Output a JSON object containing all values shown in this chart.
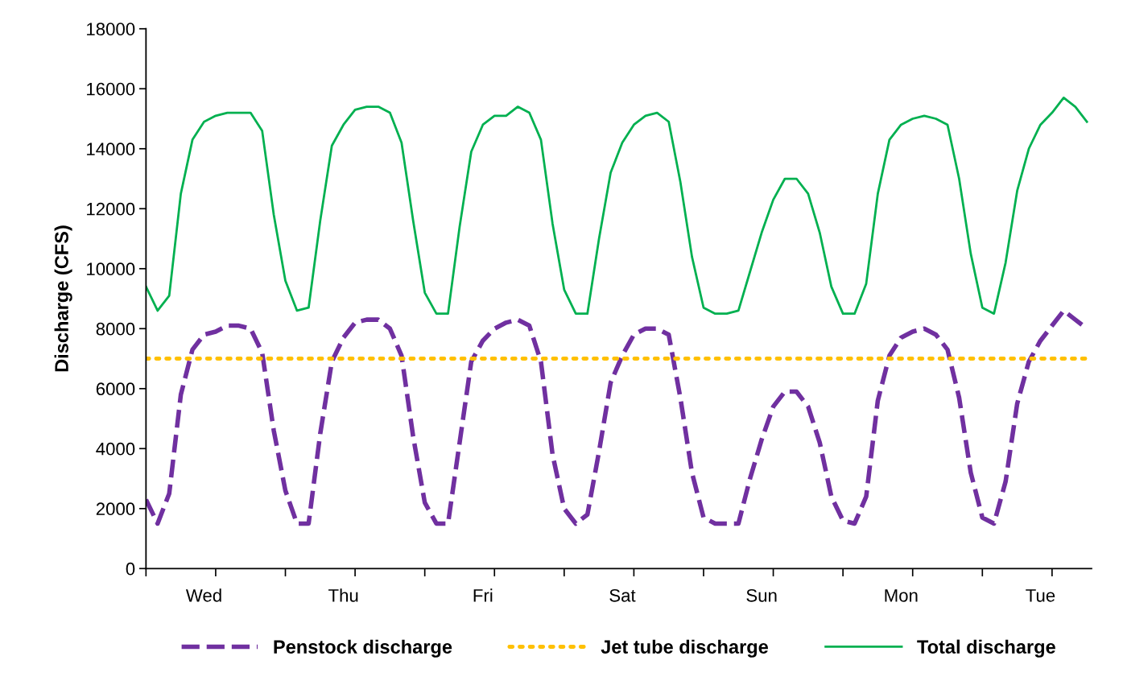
{
  "chart_data": {
    "type": "line",
    "ylabel": "Discharge (CFS)",
    "ylim": [
      0,
      18000
    ],
    "yticks": [
      0,
      2000,
      4000,
      6000,
      8000,
      10000,
      12000,
      14000,
      16000,
      18000
    ],
    "categories": [
      null,
      null,
      null,
      null,
      null,
      "Wed",
      null,
      null,
      null,
      null,
      null,
      null,
      null,
      null,
      null,
      null,
      null,
      "Thu",
      null,
      null,
      null,
      null,
      null,
      null,
      null,
      null,
      null,
      null,
      null,
      "Fri",
      null,
      null,
      null,
      null,
      null,
      null,
      null,
      null,
      null,
      null,
      null,
      "Sat",
      null,
      null,
      null,
      null,
      null,
      null,
      null,
      null,
      null,
      null,
      null,
      "Sun",
      null,
      null,
      null,
      null,
      null,
      null,
      null,
      null,
      null,
      null,
      null,
      "Mon",
      null,
      null,
      null,
      null,
      null,
      null,
      null,
      null,
      null,
      null,
      null,
      "Tue",
      null,
      null,
      null,
      null
    ],
    "grid": false,
    "legend": "bottom",
    "series": [
      {
        "name": "Penstock discharge",
        "color": "#7030a0",
        "line_style": "dashed",
        "values": [
          2300,
          1500,
          2500,
          5800,
          7300,
          7800,
          7900,
          8100,
          8100,
          8000,
          7200,
          4600,
          2600,
          1500,
          1500,
          4500,
          6900,
          7700,
          8200,
          8300,
          8300,
          8000,
          7100,
          4400,
          2200,
          1500,
          1500,
          4200,
          6900,
          7600,
          8000,
          8200,
          8300,
          8100,
          6900,
          3800,
          2000,
          1500,
          1800,
          3900,
          6200,
          7100,
          7800,
          8000,
          8000,
          7800,
          5700,
          3200,
          1700,
          1500,
          1500,
          1500,
          3000,
          4300,
          5400,
          5900,
          5900,
          5400,
          4200,
          2400,
          1600,
          1500,
          2400,
          5600,
          7100,
          7700,
          7900,
          8000,
          7800,
          7300,
          5700,
          3200,
          1700,
          1500,
          2900,
          5500,
          6900,
          7600,
          8100,
          8600,
          8300,
          8000
        ]
      },
      {
        "name": "Jet tube discharge",
        "color": "#ffc000",
        "line_style": "dotted",
        "values": [
          7000,
          7000,
          7000,
          7000,
          7000,
          7000,
          7000,
          7000,
          7000,
          7000,
          7000,
          7000,
          7000,
          7000,
          7000,
          7000,
          7000,
          7000,
          7000,
          7000,
          7000,
          7000,
          7000,
          7000,
          7000,
          7000,
          7000,
          7000,
          7000,
          7000,
          7000,
          7000,
          7000,
          7000,
          7000,
          7000,
          7000,
          7000,
          7000,
          7000,
          7000,
          7000,
          7000,
          7000,
          7000,
          7000,
          7000,
          7000,
          7000,
          7000,
          7000,
          7000,
          7000,
          7000,
          7000,
          7000,
          7000,
          7000,
          7000,
          7000,
          7000,
          7000,
          7000,
          7000,
          7000,
          7000,
          7000,
          7000,
          7000,
          7000,
          7000,
          7000,
          7000,
          7000,
          7000,
          7000,
          7000,
          7000,
          7000,
          7000,
          7000,
          7000
        ]
      },
      {
        "name": "Total discharge",
        "color": "#00b050",
        "line_style": "solid",
        "values": [
          9400,
          8600,
          9100,
          12500,
          14300,
          14900,
          15100,
          15200,
          15200,
          15200,
          14600,
          11800,
          9600,
          8600,
          8700,
          11600,
          14100,
          14800,
          15300,
          15400,
          15400,
          15200,
          14200,
          11600,
          9200,
          8500,
          8500,
          11400,
          13900,
          14800,
          15100,
          15100,
          15400,
          15200,
          14300,
          11500,
          9300,
          8500,
          8500,
          11000,
          13200,
          14200,
          14800,
          15100,
          15200,
          14900,
          12900,
          10400,
          8700,
          8500,
          8500,
          8600,
          9900,
          11200,
          12300,
          13000,
          13000,
          12500,
          11200,
          9400,
          8500,
          8500,
          9500,
          12500,
          14300,
          14800,
          15000,
          15100,
          15000,
          14800,
          13000,
          10500,
          8700,
          8500,
          10200,
          12600,
          14000,
          14800,
          15200,
          15700,
          15400,
          14900
        ]
      }
    ]
  }
}
